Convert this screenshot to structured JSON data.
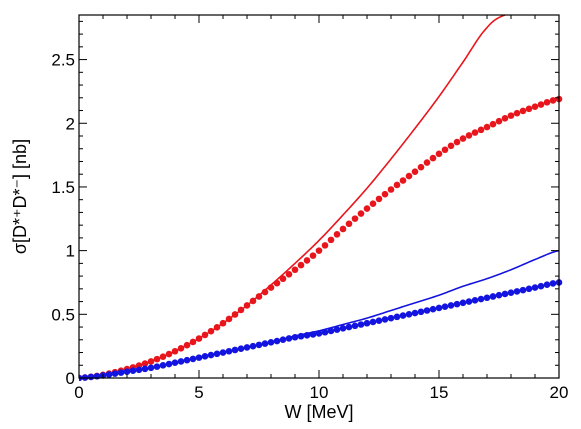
{
  "chart_data": {
    "type": "line",
    "title": "",
    "xlabel": "W [MeV]",
    "ylabel": "σ[D*⁺D*⁻] [nb]",
    "xlim": [
      0,
      20
    ],
    "ylim": [
      0,
      2.85
    ],
    "x_ticks": [
      "0",
      "5",
      "10",
      "15",
      "20"
    ],
    "y_ticks": [
      "0",
      "0.5",
      "1",
      "1.5",
      "2",
      "2.5"
    ],
    "grid": false,
    "legend": "none",
    "series": [
      {
        "color": "#e8161c",
        "style": "line",
        "x": [
          0,
          1,
          2,
          3,
          4,
          5,
          6,
          7,
          8,
          9,
          10,
          11,
          12,
          13,
          14,
          15,
          16,
          17,
          17.75
        ],
        "y": [
          0,
          0.025,
          0.07,
          0.13,
          0.21,
          0.31,
          0.43,
          0.57,
          0.73,
          0.9,
          1.08,
          1.28,
          1.49,
          1.72,
          1.96,
          2.21,
          2.48,
          2.75,
          2.85
        ]
      },
      {
        "color": "#e8161c",
        "style": "dots",
        "x": [
          0,
          1,
          2,
          3,
          4,
          5,
          6,
          7,
          8,
          9,
          10,
          11,
          12,
          13,
          14,
          15,
          16,
          17,
          18,
          19,
          20
        ],
        "y": [
          0,
          0.025,
          0.07,
          0.13,
          0.21,
          0.31,
          0.43,
          0.57,
          0.71,
          0.85,
          1.0,
          1.17,
          1.33,
          1.48,
          1.62,
          1.76,
          1.88,
          1.97,
          2.06,
          2.13,
          2.19
        ]
      },
      {
        "color": "#1414e0",
        "style": "line",
        "x": [
          0,
          1,
          2,
          3,
          4,
          5,
          6,
          7,
          8,
          9,
          10,
          11,
          12,
          13,
          14,
          15,
          16,
          17,
          18,
          19,
          20
        ],
        "y": [
          0,
          0.02,
          0.05,
          0.08,
          0.12,
          0.16,
          0.2,
          0.24,
          0.28,
          0.33,
          0.37,
          0.42,
          0.47,
          0.53,
          0.59,
          0.65,
          0.72,
          0.78,
          0.85,
          0.93,
          1.0
        ]
      },
      {
        "color": "#1414e0",
        "style": "dots",
        "x": [
          0,
          1,
          2,
          3,
          4,
          5,
          6,
          7,
          8,
          9,
          10,
          11,
          12,
          13,
          14,
          15,
          16,
          17,
          18,
          19,
          20
        ],
        "y": [
          0,
          0.02,
          0.05,
          0.08,
          0.12,
          0.16,
          0.2,
          0.24,
          0.28,
          0.32,
          0.35,
          0.39,
          0.43,
          0.47,
          0.51,
          0.55,
          0.59,
          0.63,
          0.67,
          0.71,
          0.75
        ]
      }
    ]
  }
}
